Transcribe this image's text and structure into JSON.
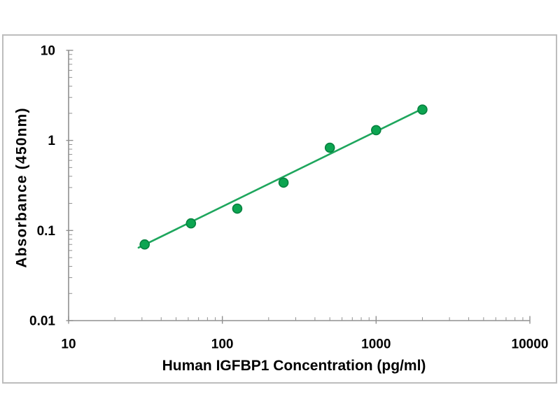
{
  "chart_data": {
    "type": "scatter",
    "title": "",
    "xlabel": "Human IGFBP1 Concentration (pg/ml)",
    "ylabel": "Absorbance (450nm)",
    "x_scale": "log",
    "y_scale": "log",
    "xlim": [
      10,
      10000
    ],
    "ylim": [
      0.01,
      10
    ],
    "grid": false,
    "legend": "none",
    "xticks": [
      {
        "value": 10,
        "label": "10"
      },
      {
        "value": 100,
        "label": "100"
      },
      {
        "value": 1000,
        "label": "1000"
      },
      {
        "value": 10000,
        "label": "10000"
      }
    ],
    "yticks": [
      {
        "value": 10,
        "label": "10"
      },
      {
        "value": 1,
        "label": "1"
      },
      {
        "value": 0.1,
        "label": "0.1"
      },
      {
        "value": 0.01,
        "label": "0.01"
      }
    ],
    "series": [
      {
        "name": "standard-points",
        "type": "scatter",
        "marker": "circle",
        "x": [
          31.25,
          62.5,
          125,
          250,
          500,
          1000,
          2000
        ],
        "y": [
          0.07,
          0.12,
          0.175,
          0.34,
          0.83,
          1.3,
          2.2
        ]
      },
      {
        "name": "fit-line",
        "type": "line",
        "x": [
          28.5,
          1950
        ],
        "y": [
          0.0645,
          2.2
        ]
      }
    ],
    "colors": {
      "marker_fill": "#0ca551",
      "marker_edge": "#07813f",
      "fit_line": "#1ea65d",
      "axis": "#909090",
      "tick_text": "#000000",
      "frame_border": "#bdbdbd",
      "background": "#ffffff"
    }
  }
}
